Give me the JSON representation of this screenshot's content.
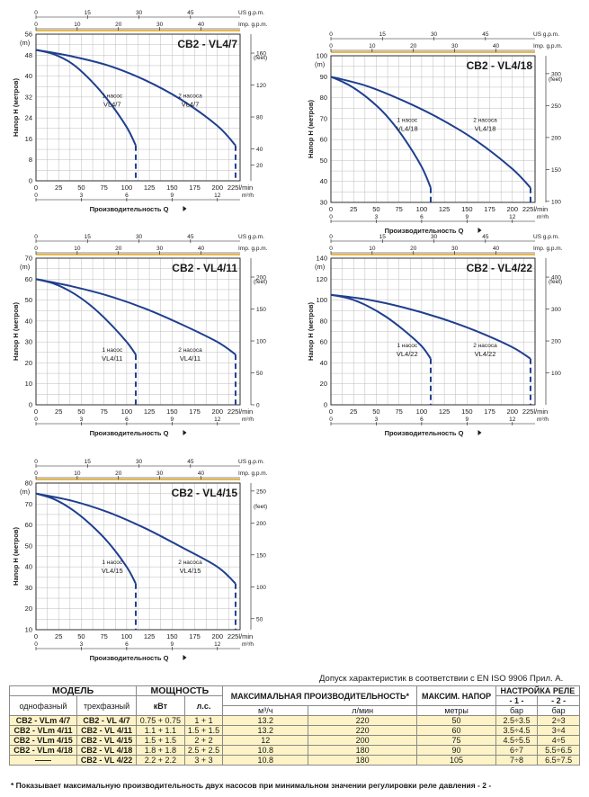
{
  "charts_common": {
    "top_axis_unit": "US g.p.m.",
    "top_axis2_unit": "Imp. g.p.m.",
    "x_unit": "l/min",
    "x2_unit": "m³/h",
    "x_title": "Производительность Q",
    "y_unit": "(m)",
    "y_title": "Напор H  (метров)",
    "y2_unit": "(feet)",
    "curve1_label": "1 насос",
    "curve2_label": "2 насоса"
  },
  "chart_data": [
    {
      "type": "line",
      "title": "CB2 - VL4/7",
      "xlabel": "Производительность Q",
      "ylabel": "Напор H  (метров)",
      "xlim": [
        0,
        225
      ],
      "ylim": [
        0,
        56
      ],
      "y_ticks": [
        0,
        8,
        16,
        24,
        32,
        40,
        48,
        56
      ],
      "yf_ticks": [
        20,
        40,
        80,
        120,
        160
      ],
      "ft_max": 183.7,
      "series": [
        {
          "name": "1 насос VL4/7",
          "x": [
            0,
            20,
            40,
            60,
            80,
            100,
            110
          ],
          "y": [
            50,
            48.3,
            44.7,
            38.5,
            30.5,
            20.5,
            13.5
          ]
        },
        {
          "name": "2 насоса VL4/7",
          "x": [
            0,
            40,
            80,
            120,
            160,
            200,
            220
          ],
          "y": [
            50,
            47.5,
            44,
            38.5,
            31,
            21,
            13.5
          ]
        }
      ],
      "curve_tag": "VL4/7",
      "lab1": [
        84,
        29
      ],
      "lab2": [
        170,
        29
      ]
    },
    {
      "type": "line",
      "title": "CB2 - VL4/18",
      "xlabel": "Производительность Q",
      "ylabel": "Напор H  (метров)",
      "xlim": [
        0,
        225
      ],
      "ylim": [
        30,
        100
      ],
      "y_ticks": [
        30,
        40,
        50,
        60,
        70,
        80,
        90,
        100
      ],
      "yf_ticks": [
        100,
        150,
        200,
        250,
        300
      ],
      "ft_max": 328,
      "ft_min": 98.4,
      "series": [
        {
          "name": "1 насос VL4/18",
          "x": [
            0,
            20,
            40,
            60,
            80,
            100,
            110
          ],
          "y": [
            90,
            86,
            80,
            72,
            61,
            47,
            37
          ]
        },
        {
          "name": "2 насоса VL4/18",
          "x": [
            0,
            40,
            80,
            120,
            160,
            200,
            220
          ],
          "y": [
            90,
            85.5,
            78.5,
            70,
            59.5,
            46,
            37
          ]
        }
      ],
      "curve_tag": "VL4/18",
      "lab1": [
        84,
        65
      ],
      "lab2": [
        170,
        65
      ]
    },
    {
      "type": "line",
      "title": "CB2 - VL4/11",
      "xlabel": "Производительность Q",
      "ylabel": "Напор H  (метров)",
      "xlim": [
        0,
        225
      ],
      "ylim": [
        0,
        70
      ],
      "y_ticks": [
        0,
        10,
        20,
        30,
        40,
        50,
        60,
        70
      ],
      "yf_ticks": [
        0,
        50,
        100,
        150,
        200
      ],
      "ft_max": 229.6,
      "series": [
        {
          "name": "1 насос VL4/11",
          "x": [
            0,
            20,
            40,
            60,
            80,
            100,
            110
          ],
          "y": [
            60,
            57.8,
            53.6,
            47.5,
            39.5,
            30,
            24
          ]
        },
        {
          "name": "2 насоса VL4/11",
          "x": [
            0,
            40,
            80,
            120,
            160,
            200,
            220
          ],
          "y": [
            60,
            56.5,
            52,
            46,
            38.5,
            30,
            24
          ]
        }
      ],
      "curve_tag": "VL4/11",
      "lab1": [
        84,
        22
      ],
      "lab2": [
        170,
        22
      ]
    },
    {
      "type": "line",
      "title": "CB2 - VL4/22",
      "xlabel": "Производительность Q",
      "ylabel": "Напор H  (метров)",
      "xlim": [
        0,
        225
      ],
      "ylim": [
        0,
        140
      ],
      "y_ticks": [
        0,
        20,
        40,
        60,
        80,
        100,
        120,
        140
      ],
      "yf_ticks": [
        100,
        200,
        300,
        400
      ],
      "ft_max": 459.3,
      "series": [
        {
          "name": "1 насос VL4/22",
          "x": [
            0,
            20,
            40,
            60,
            80,
            100,
            110
          ],
          "y": [
            105,
            101.5,
            94.5,
            84.5,
            71.5,
            56,
            44
          ]
        },
        {
          "name": "2 насоса VL4/22",
          "x": [
            0,
            40,
            80,
            120,
            160,
            200,
            220
          ],
          "y": [
            105,
            100.5,
            93,
            83,
            70.5,
            55,
            44
          ]
        }
      ],
      "curve_tag": "VL4/22",
      "lab1": [
        84,
        48
      ],
      "lab2": [
        170,
        48
      ]
    },
    {
      "type": "line",
      "title": "CB2 - VL4/15",
      "xlabel": "Производительность Q",
      "ylabel": "Напор H  (метров)",
      "xlim": [
        0,
        225
      ],
      "ylim": [
        10,
        80
      ],
      "y_ticks": [
        10,
        20,
        30,
        40,
        50,
        60,
        70,
        80
      ],
      "yf_ticks": [
        50,
        100,
        150,
        200,
        250
      ],
      "ft_max": 262.5,
      "ft_min": 32.8,
      "series": [
        {
          "name": "1 насос VL4/15",
          "x": [
            0,
            20,
            40,
            60,
            80,
            100,
            110
          ],
          "y": [
            75,
            72.3,
            67.3,
            60.3,
            51.5,
            40,
            32
          ]
        },
        {
          "name": "2 насоса VL4/15",
          "x": [
            0,
            40,
            80,
            120,
            160,
            200,
            220
          ],
          "y": [
            75,
            71.5,
            66,
            58.5,
            49.5,
            40,
            32
          ]
        }
      ],
      "curve_tag": "VL4/15",
      "lab1": [
        84,
        38
      ],
      "lab2": [
        170,
        38
      ]
    }
  ],
  "table": {
    "tolerance": "Допуск характеристик в соответствии с EN ISO 9906 Прил.  A.",
    "h_model": "МОДЕЛЬ",
    "h_power": "МОЩНОСТЬ",
    "h_flow": "МАКСИМАЛЬНАЯ ПРОИЗВОДИТЕЛЬНОСТЬ*",
    "h_head": "МАКСИМ. НАПОР",
    "h_relay": "НАСТРОЙКА РЕЛЕ",
    "h_single": "однофазный",
    "h_three": "трехфазный",
    "h_kw": "кВт",
    "h_hp": "л.с.",
    "h_m3h": "м³/ч",
    "h_lmin": "л/мин",
    "h_m": "метры",
    "h_r1": "- 1 -",
    "h_r2": "- 2 -",
    "h_bar1": "бар",
    "h_bar2": "бар",
    "rows": [
      [
        "CB2 - VLm 4/7",
        "CB2 - VL 4/7",
        "0.75 + 0.75",
        "1 + 1",
        "13.2",
        "220",
        "50",
        "2.5÷3.5",
        "2÷3"
      ],
      [
        "CB2 - VLm 4/11",
        "CB2 - VL 4/11",
        "1.1 + 1.1",
        "1.5 + 1.5",
        "13.2",
        "220",
        "60",
        "3.5÷4.5",
        "3÷4"
      ],
      [
        "CB2 - VLm 4/15",
        "CB2 - VL 4/15",
        "1.5 + 1.5",
        "2 + 2",
        "12",
        "200",
        "75",
        "4.5÷5.5",
        "4÷5"
      ],
      [
        "CB2 - VLm 4/18",
        "CB2 - VL 4/18",
        "1.8 + 1.8",
        "2.5 + 2.5",
        "10.8",
        "180",
        "90",
        "6÷7",
        "5.5÷6.5"
      ],
      [
        "——",
        "CB2 - VL 4/22",
        "2.2 + 2.2",
        "3 + 3",
        "10.8",
        "180",
        "105",
        "7÷8",
        "6.5÷7.5"
      ]
    ],
    "footnote": "* Показывает максимальную производительность двух насосов при минимальном значении регулировки реле давления - 2 -"
  }
}
